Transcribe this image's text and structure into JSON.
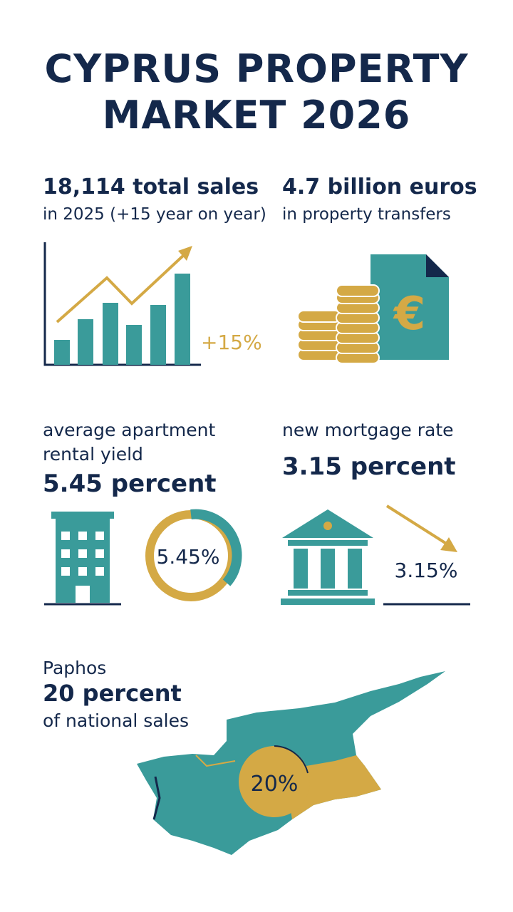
{
  "header": {
    "title_lines": [
      "CYPRUS PROPERTY",
      "MARKET 2026"
    ]
  },
  "sales": {
    "headline": "18,114 total sales",
    "subline": "in 2025 (+15 year on year)",
    "chart_label": "+15%"
  },
  "transfers": {
    "headline": "4.7 billion euros",
    "subline": "in property transfers",
    "icon_symbol": "€"
  },
  "yield": {
    "label_lines": [
      "average apartment",
      "rental yield"
    ],
    "headline": "5.45 percent",
    "donut_label": "5.45%"
  },
  "mortgage": {
    "label": "new mortgage rate",
    "headline": "3.15 percent",
    "icon_label": "3.15%"
  },
  "paphos": {
    "label": "Paphos",
    "headline": "20 percent",
    "subline": "of national sales",
    "map_label": "20%"
  }
}
